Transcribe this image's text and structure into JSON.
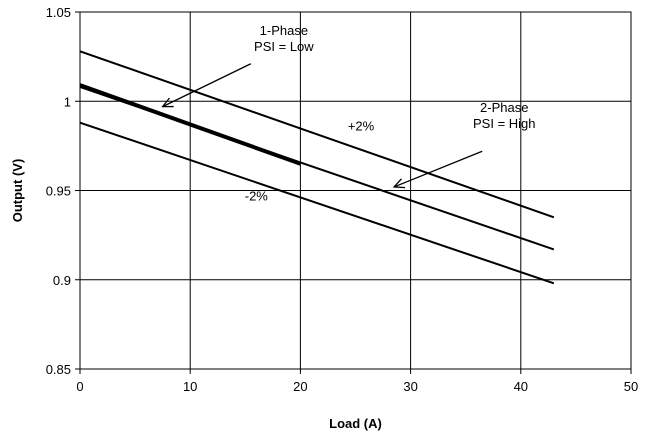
{
  "chart_data": {
    "type": "line",
    "title": "",
    "xlabel": "Load (A)",
    "ylabel": "Output (V)",
    "xlim": [
      0,
      50
    ],
    "ylim": [
      0.85,
      1.05
    ],
    "x_ticks": [
      0,
      10,
      20,
      30,
      40,
      50
    ],
    "y_ticks": [
      0.85,
      0.9,
      0.95,
      1,
      1.05
    ],
    "x_tick_labels": [
      "0",
      "10",
      "20",
      "30",
      "40",
      "50"
    ],
    "y_tick_labels": [
      "0.85",
      "0.9",
      "0.95",
      "1",
      "1.05"
    ],
    "grid": true,
    "series": [
      {
        "key": "upper-limit",
        "x": [
          0,
          43
        ],
        "y": [
          1.028,
          0.935
        ],
        "color": "#000000",
        "weight": "normal"
      },
      {
        "key": "nominal-2-phase",
        "x": [
          0,
          43
        ],
        "y": [
          1.008,
          0.917
        ],
        "color": "#000000",
        "weight": "normal"
      },
      {
        "key": "lower-limit",
        "x": [
          0,
          43
        ],
        "y": [
          0.988,
          0.898
        ],
        "color": "#000000",
        "weight": "normal"
      },
      {
        "key": "nominal-1-phase",
        "x": [
          0,
          20
        ],
        "y": [
          1.009,
          0.965
        ],
        "color": "#000000",
        "weight": "bold"
      }
    ],
    "annotations": [
      {
        "key": "one-phase-label",
        "lines": [
          "1-Phase",
          "PSI = Low"
        ],
        "text_at": [
          18.5,
          1.037
        ],
        "arrow_from": [
          15.5,
          1.021
        ],
        "arrow_to": [
          7.5,
          0.997
        ]
      },
      {
        "key": "two-phase-label",
        "lines": [
          "2-Phase",
          "PSI = High"
        ],
        "text_at": [
          38.5,
          0.994
        ],
        "arrow_from": [
          36.5,
          0.972
        ],
        "arrow_to": [
          28.5,
          0.952
        ]
      },
      {
        "key": "plus-two-percent",
        "lines": [
          "+2%"
        ],
        "text_at": [
          25.5,
          0.9835
        ]
      },
      {
        "key": "minus-two-percent",
        "lines": [
          "-2%"
        ],
        "text_at": [
          16,
          0.9445
        ]
      }
    ]
  }
}
